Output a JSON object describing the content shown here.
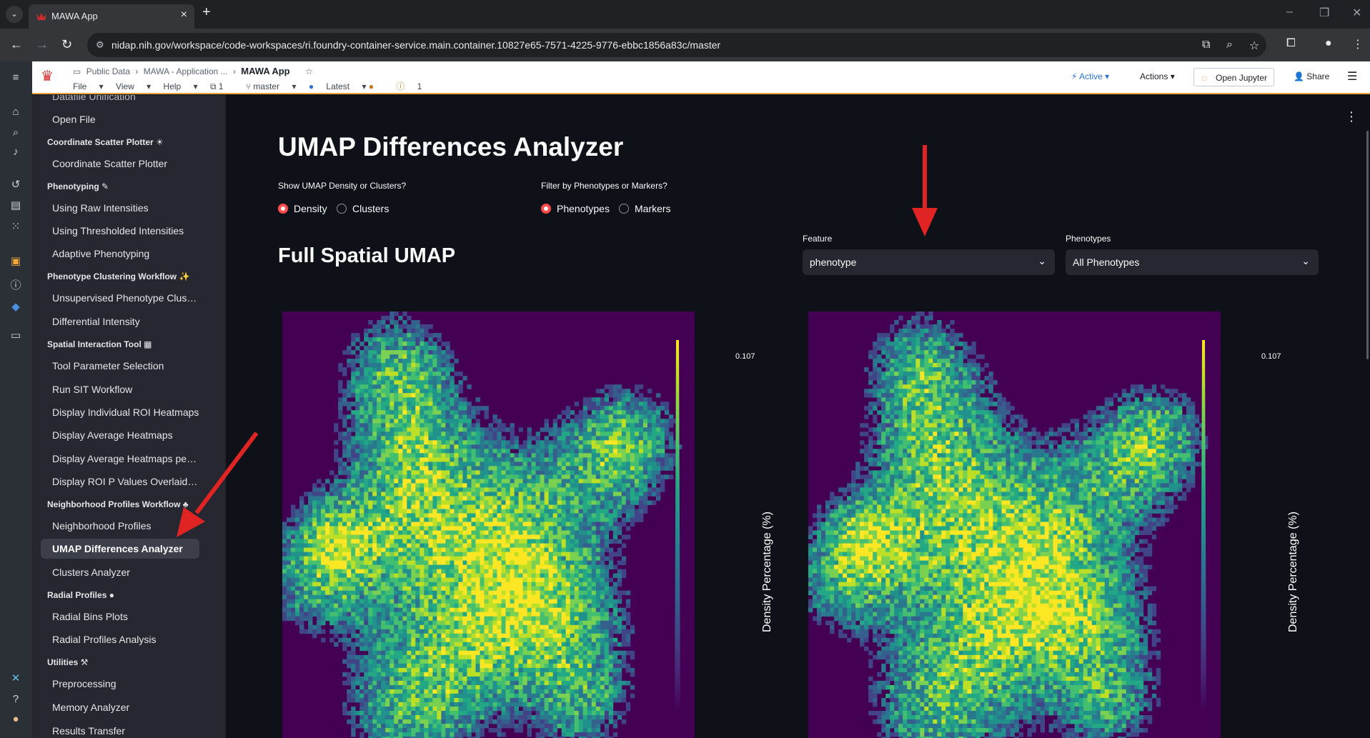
{
  "browser": {
    "tab_title": "MAWA App",
    "url": "nidap.nih.gov/workspace/code-workspaces/ri.foundry-container-service.main.container.10827e65-7571-4225-9776-ebbc1856a83c/master"
  },
  "header": {
    "breadcrumbs": [
      "Public Data",
      "MAWA - Application ...",
      "MAWA App"
    ],
    "menus": [
      "File",
      "View",
      "Help"
    ],
    "files_count": "1",
    "branch": "master",
    "version": "Latest",
    "issues_count": "1",
    "status": "Active",
    "actions_label": "Actions",
    "jupyter_label": "Open Jupyter",
    "share_label": "Share"
  },
  "sidebar": {
    "top_cut_item": "Datafile Unification",
    "open_file": "Open File",
    "sections": [
      {
        "title": "Coordinate Scatter Plotter ☀",
        "items": [
          "Coordinate Scatter Plotter"
        ]
      },
      {
        "title": "Phenotyping ✎",
        "items": [
          "Using Raw Intensities",
          "Using Thresholded Intensities",
          "Adaptive Phenotyping"
        ]
      },
      {
        "title": "Phenotype Clustering Workflow ✨",
        "items": [
          "Unsupervised Phenotype Cluste...",
          "Differential Intensity"
        ]
      },
      {
        "title": "Spatial Interaction Tool ▦",
        "items": [
          "Tool Parameter Selection",
          "Run SIT Workflow",
          "Display Individual ROI Heatmaps",
          "Display Average Heatmaps",
          "Display Average Heatmaps per A...",
          "Display ROI P Values Overlaid on..."
        ]
      },
      {
        "title": "Neighborhood Profiles Workflow ♣",
        "items": [
          "Neighborhood Profiles",
          "UMAP Differences Analyzer",
          "Clusters Analyzer"
        ]
      },
      {
        "title": "Radial Profiles ●",
        "items": [
          "Radial Bins Plots",
          "Radial Profiles Analysis"
        ]
      },
      {
        "title": "Utilities ⚒",
        "items": [
          "Preprocessing",
          "Memory Analyzer",
          "Results Transfer"
        ]
      }
    ]
  },
  "main": {
    "title": "UMAP Differences Analyzer",
    "subtitle": "Full Spatial UMAP",
    "density_question": "Show UMAP Density or Clusters?",
    "density_options": [
      "Density",
      "Clusters"
    ],
    "filter_question": "Filter by Phenotypes or Markers?",
    "filter_options": [
      "Phenotypes",
      "Markers"
    ],
    "feature_label": "Feature",
    "feature_value": "phenotype",
    "phenotypes_label": "Phenotypes",
    "phenotypes_value": "All Phenotypes",
    "plots": [
      {
        "colorbar_title": "Density Percentage (%)",
        "colorbar_max": "0.107"
      },
      {
        "colorbar_title": "Density Percentage (%)",
        "colorbar_max": "0.107"
      }
    ]
  },
  "colors": {
    "accent": "#ff4b4b",
    "viridis_low": "#440154",
    "viridis_mid": "#21918c",
    "viridis_high": "#fde725"
  }
}
